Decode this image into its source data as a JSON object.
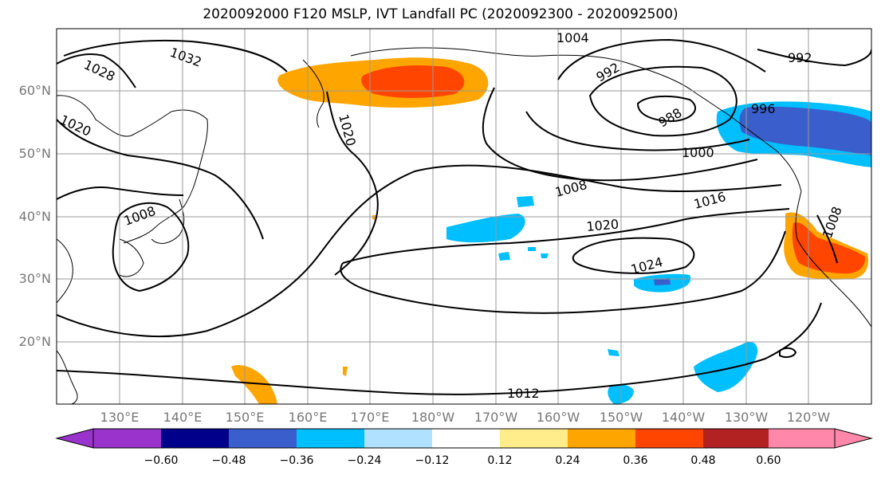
{
  "title": "2020092000 F120 MSLP, IVT Landfall PC (2020092300 - 2020092500)",
  "lat_labels": [
    "60°N",
    "50°N",
    "40°N",
    "30°N",
    "20°N"
  ],
  "lon_labels": [
    "130°E",
    "140°E",
    "150°E",
    "160°E",
    "170°E",
    "180°W",
    "170°W",
    "160°W",
    "150°W",
    "140°W",
    "130°W",
    "120°W"
  ],
  "contour_labels": [
    "1004",
    "992",
    "992",
    "988",
    "996",
    "1000",
    "1008",
    "1016",
    "1020",
    "1024",
    "1012",
    "1028",
    "1032",
    "1020",
    "1020",
    "1008",
    "1008"
  ],
  "colorbar": {
    "tick_labels": [
      "−0.60",
      "−0.48",
      "−0.36",
      "−0.24",
      "−0.12",
      "0.12",
      "0.24",
      "0.36",
      "0.48",
      "0.60"
    ],
    "colors": [
      "#9933cc",
      "#00008b",
      "#3a5fcd",
      "#00bfff",
      "#b0e2ff",
      "#ffffff",
      "#ffec8b",
      "#ffa500",
      "#ff4500",
      "#b22222",
      "#ff88aa"
    ]
  },
  "colors": {
    "land_outline": "#000000",
    "grid": "#9a9a9a",
    "isobar": "#000000"
  }
}
